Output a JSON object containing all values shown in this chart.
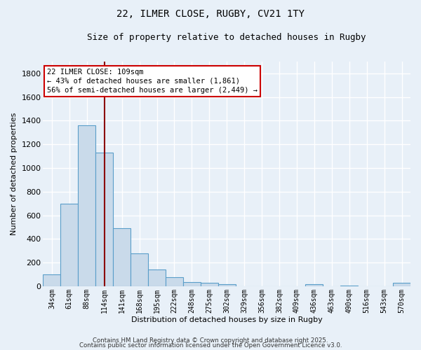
{
  "title1": "22, ILMER CLOSE, RUGBY, CV21 1TY",
  "title2": "Size of property relative to detached houses in Rugby",
  "xlabel": "Distribution of detached houses by size in Rugby",
  "ylabel": "Number of detached properties",
  "categories": [
    "34sqm",
    "61sqm",
    "88sqm",
    "114sqm",
    "141sqm",
    "168sqm",
    "195sqm",
    "222sqm",
    "248sqm",
    "275sqm",
    "302sqm",
    "329sqm",
    "356sqm",
    "382sqm",
    "409sqm",
    "436sqm",
    "463sqm",
    "490sqm",
    "516sqm",
    "543sqm",
    "570sqm"
  ],
  "values": [
    100,
    700,
    1360,
    1130,
    490,
    280,
    140,
    75,
    35,
    30,
    15,
    0,
    0,
    0,
    0,
    15,
    0,
    5,
    0,
    0,
    30
  ],
  "bar_color": "#c9daea",
  "bar_edge_color": "#5a9ec9",
  "background_color": "#e8f0f8",
  "grid_color": "#ffffff",
  "vline_x": 3.0,
  "vline_color": "#8b0000",
  "annotation_text": "22 ILMER CLOSE: 109sqm\n← 43% of detached houses are smaller (1,861)\n56% of semi-detached houses are larger (2,449) →",
  "annotation_box_color": "#ffffff",
  "annotation_box_edge_color": "#cc0000",
  "ylim": [
    0,
    1900
  ],
  "yticks": [
    0,
    200,
    400,
    600,
    800,
    1000,
    1200,
    1400,
    1600,
    1800
  ],
  "footer1": "Contains HM Land Registry data © Crown copyright and database right 2025.",
  "footer2": "Contains public sector information licensed under the Open Government Licence v3.0."
}
